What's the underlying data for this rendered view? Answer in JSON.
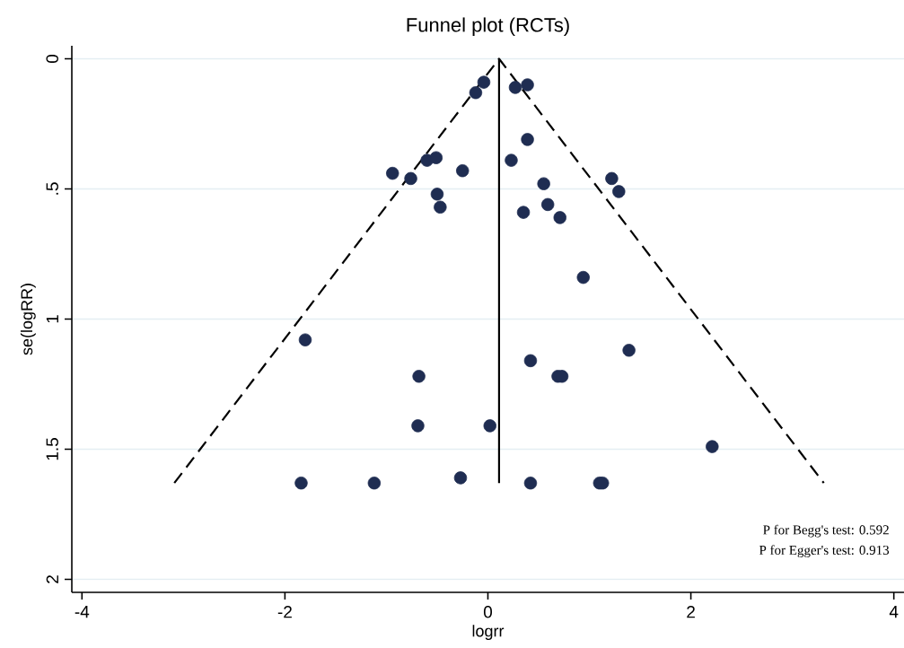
{
  "chart_data": {
    "type": "scatter",
    "title": "Funnel plot (RCTs)",
    "xlabel": "logrr",
    "ylabel": "se(logRR)",
    "xlim": [
      -4.1,
      4.1
    ],
    "ylim": [
      2.05,
      -0.05
    ],
    "xticks": [
      -4,
      -2,
      0,
      2,
      4
    ],
    "yticks": [
      0,
      {
        "value": 0.5,
        "label": ".5"
      },
      1,
      1.5,
      2
    ],
    "grid": "y",
    "series": [
      {
        "type": "line",
        "color": "#000000",
        "line_style": "dashed",
        "marker": "none",
        "x": [
          -3.09,
          0.11,
          3.31
        ],
        "values": [
          1.63,
          0,
          1.63
        ]
      },
      {
        "type": "line",
        "color": "#000000",
        "line_style": "solid",
        "marker": "none",
        "x": [
          0.11,
          0.11
        ],
        "values": [
          0,
          1.63
        ]
      },
      {
        "color": "#1f2d52",
        "marker": "circle",
        "x": [
          -0.04,
          -0.12,
          0.27,
          0.39,
          0.39,
          0.23,
          -0.6,
          -0.51,
          -0.94,
          -0.76,
          -0.25,
          -0.5,
          -0.47,
          0.55,
          1.22,
          1.29,
          0.59,
          0.35,
          0.71,
          0.94,
          -1.8,
          -0.68,
          0.42,
          0.69,
          0.73,
          1.39,
          -0.69,
          0.02,
          2.21,
          -1.84,
          -1.12,
          -0.27,
          0.42,
          1.1,
          1.13
        ],
        "values": [
          0.09,
          0.13,
          0.11,
          0.1,
          0.31,
          0.39,
          0.39,
          0.38,
          0.44,
          0.46,
          0.43,
          0.52,
          0.57,
          0.48,
          0.46,
          0.51,
          0.56,
          0.59,
          0.61,
          0.84,
          1.08,
          1.22,
          1.16,
          1.22,
          1.22,
          1.12,
          1.41,
          1.41,
          1.49,
          1.63,
          1.63,
          1.61,
          1.63,
          1.63,
          1.63
        ]
      }
    ],
    "annotations": [
      "P for Begg's test: 0.592",
      "P for Egger's test: 0.913"
    ]
  }
}
